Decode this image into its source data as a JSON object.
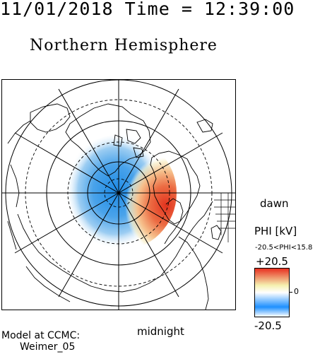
{
  "header": {
    "datetime": "11/01/2018 Time = 12:39:00"
  },
  "title": "Northern Hemisphere",
  "map": {
    "projection": "polar stereographic",
    "latitude_circles": [
      "solid",
      "dashed",
      "solid",
      "dashed",
      "solid"
    ],
    "meridian_lines": 12,
    "potential_cells": [
      {
        "polarity": "negative",
        "color": "#3a9be6",
        "side": "dusk"
      },
      {
        "polarity": "positive",
        "color": "#e8402a",
        "side": "dawn"
      }
    ]
  },
  "labels": {
    "dawn": "dawn",
    "midnight": "midnight"
  },
  "credit": {
    "line1": "Model at CCMC:",
    "line2": "Weimer_05"
  },
  "legend": {
    "title": "PHI [kV]",
    "range": "-20.5<PHI<15.8",
    "max": "+20.5",
    "zero": "0",
    "min": "-20.5",
    "colors": [
      "#ffffff",
      "#1e90ff",
      "#ffffff",
      "#f5f0b0",
      "#e83020"
    ]
  }
}
